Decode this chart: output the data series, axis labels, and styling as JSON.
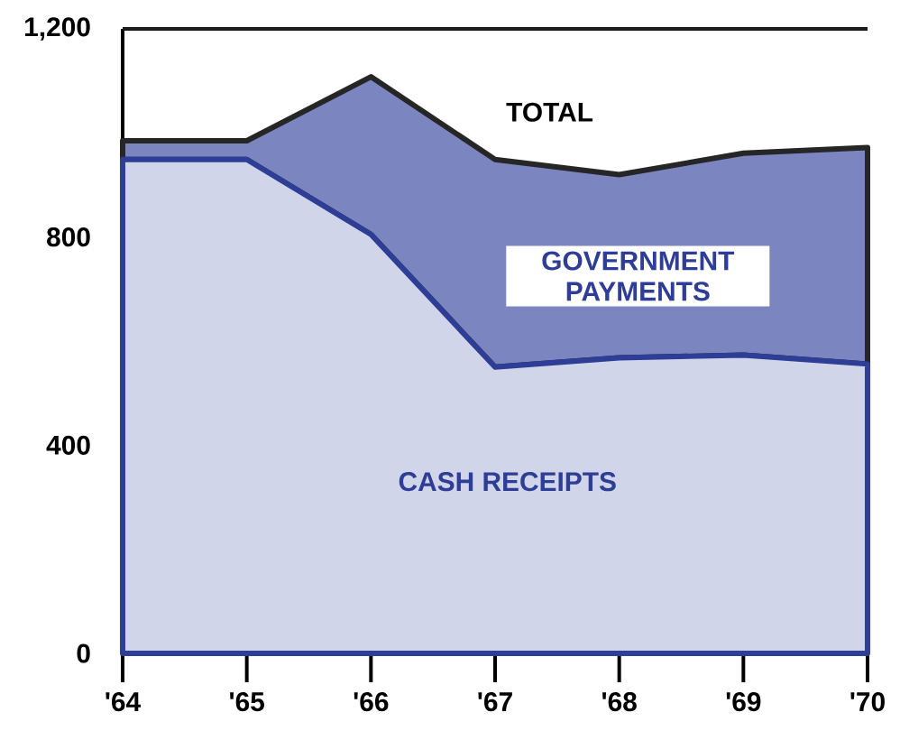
{
  "chart_data": {
    "type": "area",
    "stacked": true,
    "categories": [
      "'64",
      "'65",
      "'66",
      "'67",
      "'68",
      "'69",
      "'70"
    ],
    "ylim": [
      0,
      1200
    ],
    "yticks": [
      0,
      400,
      800,
      {
        "value": 1200,
        "label": "1,200"
      }
    ],
    "series": [
      {
        "name": "CASH RECEIPTS",
        "color": "#d1d5e9",
        "values": [
          949,
          949,
          805,
          550,
          568,
          573,
          556
        ]
      },
      {
        "name": "GOVERNMENT PAYMENTS",
        "color": "#7b85c0",
        "values": [
          36,
          36,
          303,
          399,
          352,
          388,
          416
        ]
      }
    ],
    "annotations": [
      "TOTAL"
    ],
    "ref_lines": [
      {
        "axis": "y",
        "value": 1200,
        "color": "#1a1a1a"
      }
    ]
  }
}
